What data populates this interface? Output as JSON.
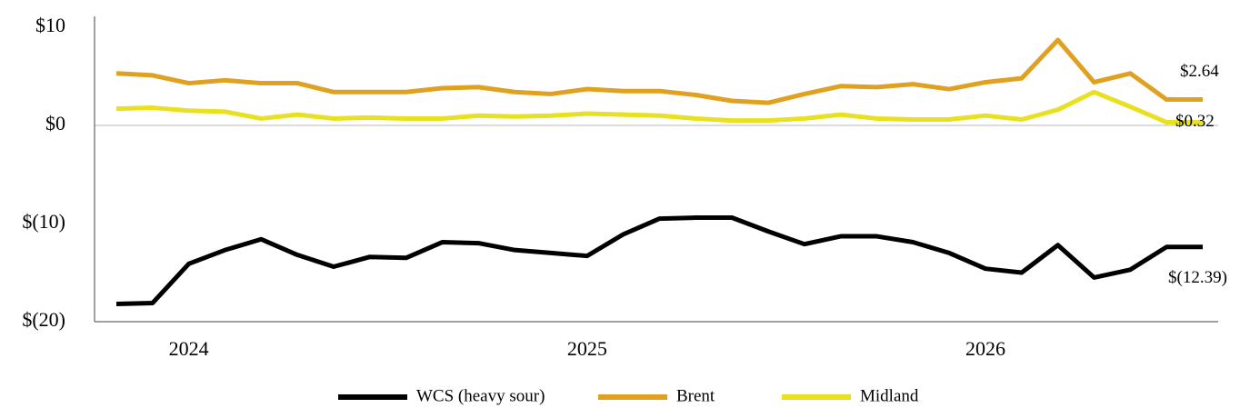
{
  "chart_data": {
    "type": "line",
    "categories": [
      null,
      null,
      "2024",
      null,
      null,
      null,
      null,
      null,
      null,
      null,
      null,
      null,
      null,
      "2025",
      null,
      null,
      null,
      null,
      null,
      null,
      null,
      null,
      null,
      null,
      "2026",
      null,
      null,
      null,
      null,
      null,
      null
    ],
    "series": [
      {
        "name": "WCS (heavy sour)",
        "color": "#000000",
        "values": [
          -18.2,
          -18.1,
          -14.1,
          -12.7,
          -11.6,
          -13.2,
          -14.4,
          -13.4,
          -13.5,
          -11.9,
          -12.0,
          -12.7,
          -13.0,
          -13.3,
          -11.1,
          -9.5,
          -9.4,
          -9.4,
          -10.8,
          -12.1,
          -11.3,
          -11.3,
          -11.9,
          -13.0,
          -14.6,
          -15.0,
          -12.2,
          -15.5,
          -14.7,
          -12.39,
          -12.39
        ],
        "value_labels": [
          null,
          null,
          null,
          null,
          null,
          null,
          null,
          null,
          null,
          null,
          null,
          null,
          null,
          null,
          null,
          null,
          null,
          null,
          null,
          null,
          null,
          null,
          null,
          null,
          null,
          null,
          null,
          null,
          null,
          null,
          "$(12.39)"
        ]
      },
      {
        "name": "Brent",
        "color": "#e0a020",
        "values": [
          5.3,
          5.1,
          4.3,
          4.6,
          4.3,
          4.3,
          3.4,
          3.4,
          3.4,
          3.8,
          3.9,
          3.4,
          3.2,
          3.7,
          3.5,
          3.5,
          3.1,
          2.5,
          2.3,
          3.2,
          4.0,
          3.9,
          4.2,
          3.7,
          4.4,
          4.8,
          8.7,
          4.4,
          5.3,
          2.64,
          2.64
        ],
        "value_labels": [
          null,
          null,
          null,
          null,
          null,
          null,
          null,
          null,
          null,
          null,
          null,
          null,
          null,
          null,
          null,
          null,
          null,
          null,
          null,
          null,
          null,
          null,
          null,
          null,
          null,
          null,
          null,
          null,
          null,
          null,
          "$2.64"
        ]
      },
      {
        "name": "Midland",
        "color": "#e8e020",
        "values": [
          1.7,
          1.8,
          1.5,
          1.4,
          0.7,
          1.1,
          0.7,
          0.8,
          0.7,
          0.7,
          1.0,
          0.9,
          1.0,
          1.2,
          1.1,
          1.0,
          0.7,
          0.5,
          0.5,
          0.7,
          1.1,
          0.7,
          0.6,
          0.6,
          1.0,
          0.6,
          1.6,
          3.4,
          1.9,
          0.32,
          0.32
        ],
        "value_labels": [
          null,
          null,
          null,
          null,
          null,
          null,
          null,
          null,
          null,
          null,
          null,
          null,
          null,
          null,
          null,
          null,
          null,
          null,
          null,
          null,
          null,
          null,
          null,
          null,
          null,
          null,
          null,
          null,
          null,
          null,
          "$0.32"
        ]
      }
    ],
    "ylim": [
      -20,
      10
    ],
    "yticks": [
      {
        "value": -20,
        "label": "$(20)"
      },
      {
        "value": -10,
        "label": "$(10)"
      },
      {
        "value": 0,
        "label": "$0"
      },
      {
        "value": 10,
        "label": "$10"
      }
    ],
    "legend": "bottom"
  }
}
